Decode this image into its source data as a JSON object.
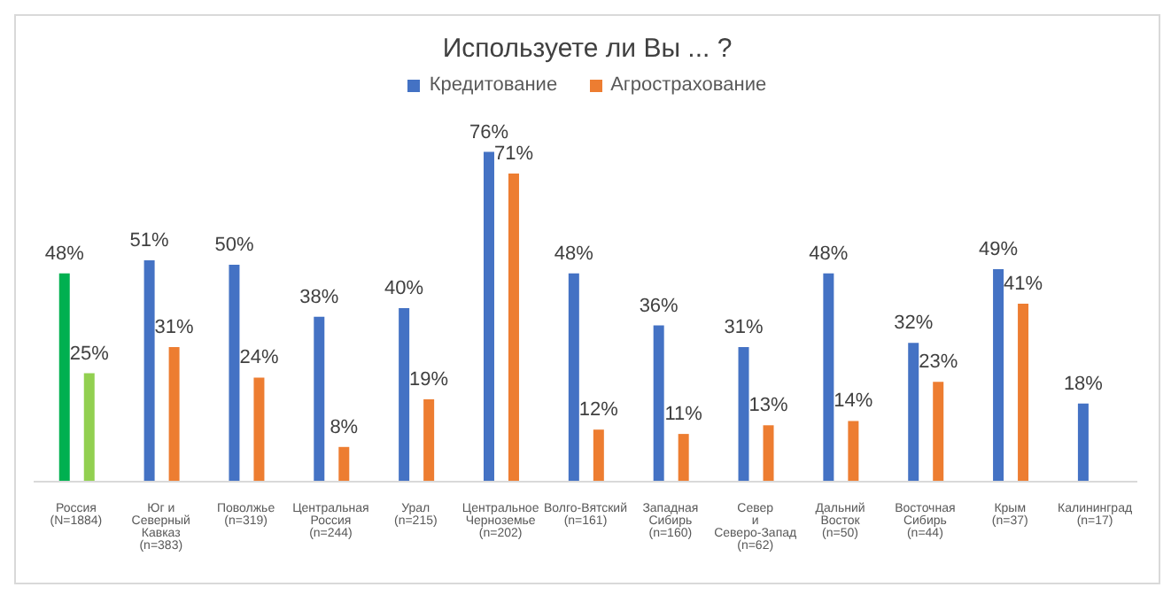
{
  "chart_data": {
    "type": "bar",
    "title": "Используете ли Вы ... ?",
    "categories": [
      "Россия (N=1884)",
      "Юг и Северный Кавказ (n=383)",
      "Поволжье (n=319)",
      "Центральная Россия (n=244)",
      "Урал (n=215)",
      "Центральное Черноземье (n=202)",
      "Волго-Вятский (n=161)",
      "Западная Сибирь (n=160)",
      "Север и Северо-Запад (n=62)",
      "Дальний Восток (n=50)",
      "Восточная Сибирь (n=44)",
      "Крым (n=37)",
      "Калининград (n=17)"
    ],
    "series": [
      {
        "name": "Кредитование",
        "color": "#4472c4",
        "colors": [
          "#00b050",
          "#4472c4",
          "#4472c4",
          "#4472c4",
          "#4472c4",
          "#4472c4",
          "#4472c4",
          "#4472c4",
          "#4472c4",
          "#4472c4",
          "#4472c4",
          "#4472c4",
          "#4472c4"
        ],
        "values": [
          48,
          51,
          50,
          38,
          40,
          76,
          48,
          36,
          31,
          48,
          32,
          49,
          18
        ],
        "value_labels": [
          "48%",
          "51%",
          "50%",
          "38%",
          "40%",
          "76%",
          "48%",
          "36%",
          "31%",
          "48%",
          "32%",
          "49%",
          "18%"
        ]
      },
      {
        "name": "Агрострахование",
        "color": "#ed7d31",
        "colors": [
          "#92d050",
          "#ed7d31",
          "#ed7d31",
          "#ed7d31",
          "#ed7d31",
          "#ed7d31",
          "#ed7d31",
          "#ed7d31",
          "#ed7d31",
          "#ed7d31",
          "#ed7d31",
          "#ed7d31",
          "#ed7d31"
        ],
        "values": [
          25,
          31,
          24,
          8,
          19,
          71,
          12,
          11,
          13,
          14,
          23,
          41,
          null
        ],
        "value_labels": [
          "25%",
          "31%",
          "24%",
          "8%",
          "19%",
          "71%",
          "12%",
          "11%",
          "13%",
          "14%",
          "23%",
          "41%",
          null
        ]
      }
    ],
    "legend": "top",
    "tick_labels": "x"
  }
}
